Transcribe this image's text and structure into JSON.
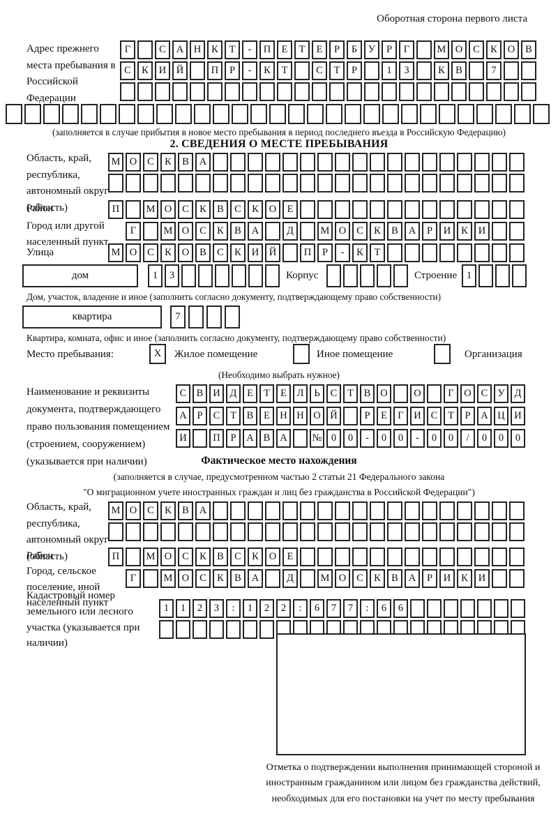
{
  "header_note": "Оборотная сторона первого листа",
  "prev_address": {
    "label": "Адрес прежнего места пребывания в Российской Федерации",
    "rows": [
      {
        "text": "Г САНКТ-ПЕТЕРБУРГ МОСКОВ",
        "len": 24
      },
      {
        "text": "СКИЙ ПР-КТ СТР 13 КВ 7",
        "len": 24
      },
      {
        "text": "",
        "len": 24
      },
      {
        "text": "",
        "len": 29
      }
    ],
    "note": "(заполняется в случае прибытия в новое место пребывания в период последнего въезда в Российскую Федерацию)"
  },
  "section2": {
    "title": "2. СВЕДЕНИЯ О МЕСТЕ ПРЕБЫВАНИЯ",
    "region_label": "Область, край, республика, автономный округ (область)",
    "region_rows": [
      {
        "text": "МОСКВА",
        "len": 24
      },
      {
        "text": "",
        "len": 24
      }
    ],
    "district_label": "Район",
    "district_row": {
      "text": "П МОСКВСКОЕ",
      "len": 24
    },
    "city_label": "Город или другой населенный пункт",
    "city_row": {
      "text": "Г МОСКВА Д МОСКВАРИКИ",
      "len": 23
    },
    "street_label": "Улица",
    "street_row": {
      "text": "МОСКОВСКИЙ ПР-КТ",
      "len": 24
    },
    "house_label": "дом",
    "house_row": {
      "text": "13",
      "len": 8
    },
    "korpus_label": "Корпус",
    "korpus_row": {
      "text": "",
      "len": 5
    },
    "stroenie_label": "Строение",
    "stroenie_row": {
      "text": "1",
      "len": 4
    },
    "house_note": "Дом, участок, владение и иное (заполнить согласно документу, подтверждающему право собственности)",
    "apartment_label": "квартира",
    "apartment_row": {
      "text": "7",
      "len": 4
    },
    "apartment_note": "Квартира, комната, офис и иное (заполнить согласно документу, подтверждающему право собственности)",
    "stay_label": "Место пребывания:",
    "stay_options": [
      {
        "label": "Жилое помещение",
        "mark": "X"
      },
      {
        "label": "Иное помещение",
        "mark": ""
      },
      {
        "label": "Организация",
        "mark": ""
      }
    ],
    "stay_note": "(Необходимо выбрать нужное)",
    "doc_label": "Наименование и реквизиты документа, подтверждающего право пользования помещением (строением, сооружением) (указывается при наличии)",
    "doc_rows": [
      {
        "text": "СВИДЕТЕЛЬСТВО О ГОСУД",
        "len": 21
      },
      {
        "text": "АРСТВЕННОЙ РЕГИСТРАЦИ",
        "len": 21
      },
      {
        "text": "И ПРАВА №00-00-00/000",
        "len": 21
      }
    ]
  },
  "actual_location": {
    "title": "Фактическое место нахождения",
    "note_lines": [
      "(заполняется в случае, предусмотренном частью 2 статьи 21 Федерального закона",
      "\"О миграционном учете иностранных граждан и лиц без гражданства в Российской Федерации\")"
    ],
    "region_label": "Область, край, республика, автономный округ (область)",
    "region_rows": [
      {
        "text": "МОСКВА",
        "len": 24
      },
      {
        "text": "",
        "len": 24
      }
    ],
    "district_label": "Район",
    "district_row": {
      "text": "П МОСКВСКОЕ",
      "len": 24
    },
    "city_label": "Город, сельское поселение, иной населенный пункт",
    "city_row": {
      "text": "Г МОСКВА Д МОСКВАРИКИ",
      "len": 23
    },
    "cadastral_label": "Кадастровый номер земельного или лесного участка (указывается при наличии)",
    "cadastral_rows": [
      {
        "text": "1123:122:677:66",
        "len": 22
      },
      {
        "text": "",
        "len": 22
      }
    ],
    "stamp_note": "Отметка о подтверждении выполнения принимающей стороной и иностранным гражданином или лицом без гражданства действий, необходимых для его постановки на учет по месту пребывания"
  }
}
